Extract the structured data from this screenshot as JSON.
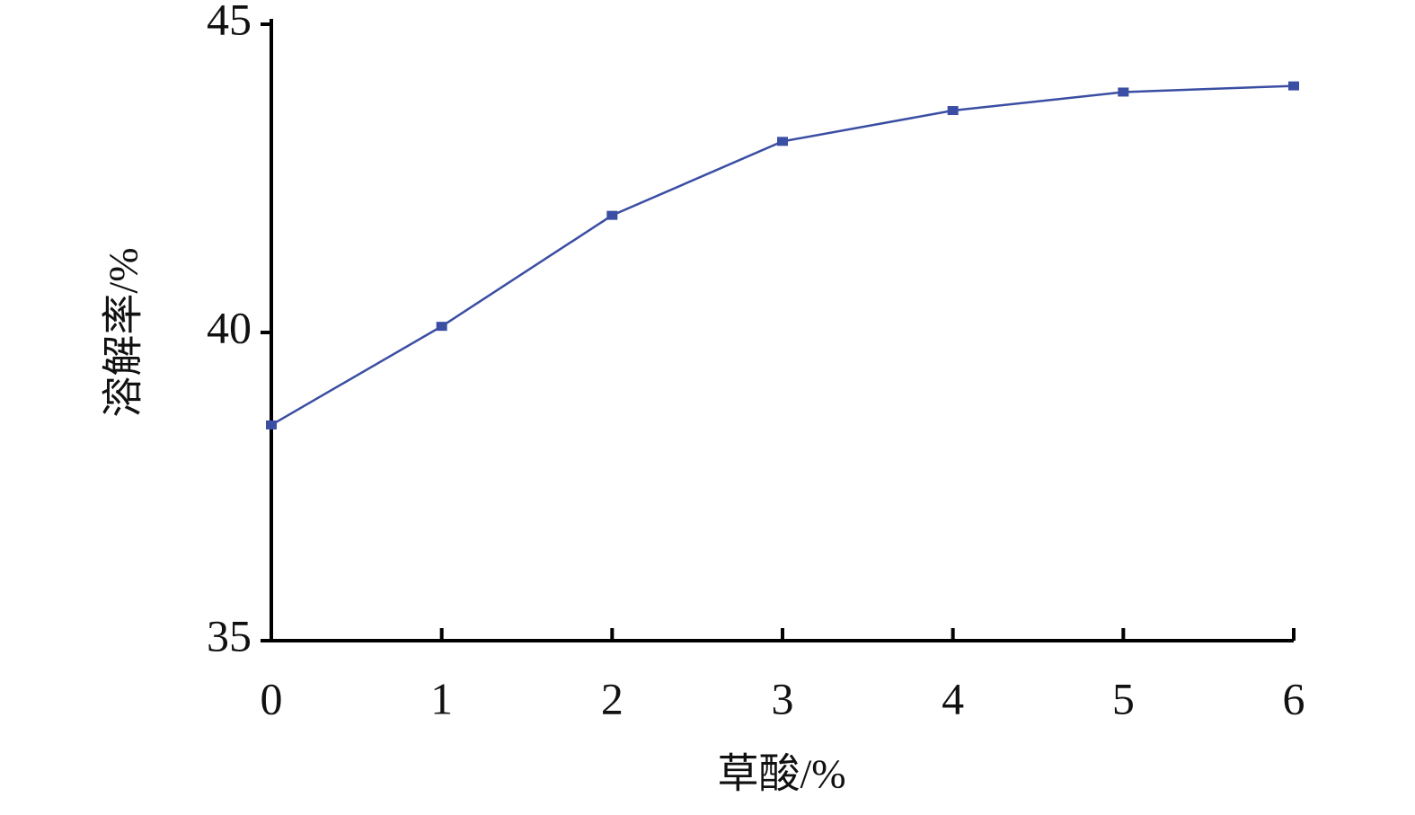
{
  "chart_data": {
    "type": "line",
    "x": [
      0,
      1,
      2,
      3,
      4,
      5,
      6
    ],
    "series": [
      {
        "name": null,
        "color": "#3a4ea3",
        "values": [
          38.5,
          40.1,
          41.9,
          43.1,
          43.6,
          43.9,
          44.0
        ]
      }
    ],
    "xlim": [
      0,
      6
    ],
    "xticks": [
      0,
      1,
      2,
      3,
      4,
      5,
      6
    ],
    "ylim": [
      35,
      45
    ],
    "yticks": [
      35,
      40,
      45
    ],
    "xlabel": "草酸/%",
    "ylabel": "溶解率/%"
  }
}
